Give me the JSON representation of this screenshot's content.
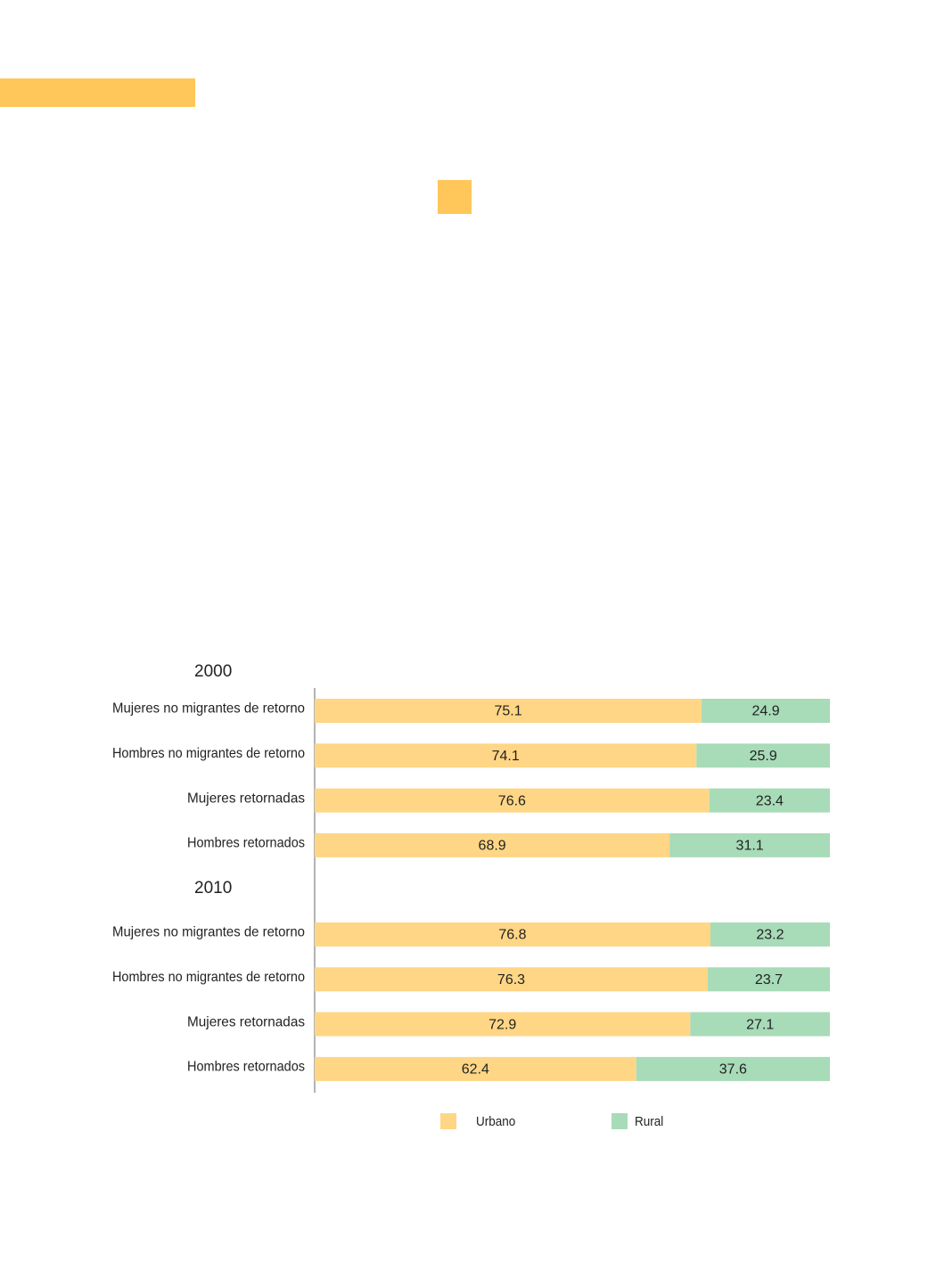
{
  "decor": {
    "accent": "#ffc659"
  },
  "chart_data": {
    "type": "bar",
    "orientation": "horizontal",
    "stacked": true,
    "xlim": [
      0,
      100
    ],
    "colors": {
      "Urbano": "#ffd685",
      "Rural": "#a8dbb8"
    },
    "series_names": [
      "Urbano",
      "Rural"
    ],
    "legend": {
      "placement": "bottom",
      "items": [
        "Urbano",
        "Rural"
      ]
    },
    "groups": [
      {
        "title": "2000",
        "rows": [
          {
            "label": "Mujeres no migrantes de retorno",
            "values": [
              75.1,
              24.9
            ],
            "labels": [
              "75.1",
              "24.9"
            ]
          },
          {
            "label": "Hombres no migrantes de retorno",
            "values": [
              74.1,
              25.9
            ],
            "labels": [
              "74.1",
              "25.9"
            ]
          },
          {
            "label": "Mujeres retornadas",
            "values": [
              76.6,
              23.4
            ],
            "labels": [
              "76.6",
              "23.4"
            ]
          },
          {
            "label": "Hombres retornados",
            "values": [
              68.9,
              31.1
            ],
            "labels": [
              "68.9",
              "31.1"
            ]
          }
        ]
      },
      {
        "title": "2010",
        "rows": [
          {
            "label": "Mujeres no migrantes de retorno",
            "values": [
              76.8,
              23.2
            ],
            "labels": [
              "76.8",
              "23.2"
            ]
          },
          {
            "label": "Hombres no migrantes de retorno",
            "values": [
              76.3,
              23.7
            ],
            "labels": [
              "76.3",
              "23.7"
            ]
          },
          {
            "label": "Mujeres retornadas",
            "values": [
              72.9,
              27.1
            ],
            "labels": [
              "72.9",
              "27.1"
            ]
          },
          {
            "label": "Hombres retornados",
            "values": [
              62.4,
              37.6
            ],
            "labels": [
              "62.4",
              "37.6"
            ]
          }
        ]
      }
    ]
  }
}
